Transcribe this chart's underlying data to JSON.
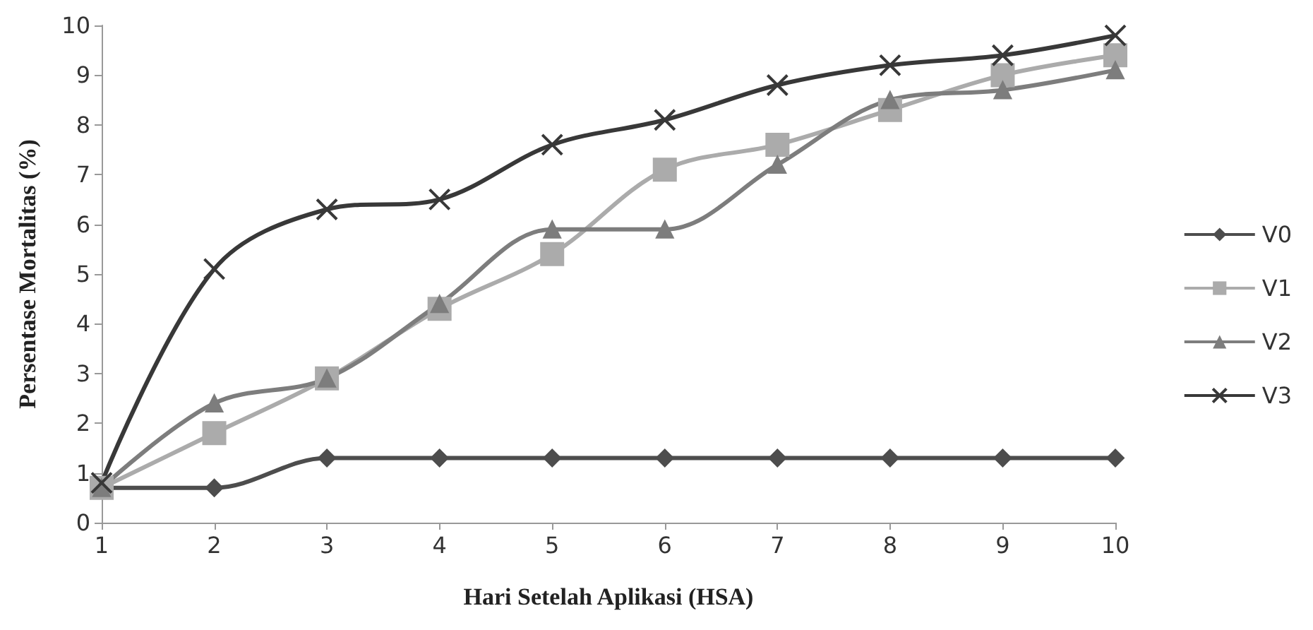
{
  "chart_data": {
    "type": "line",
    "xlabel": "Hari Setelah Aplikasi (HSA)",
    "ylabel": "Persentase Mortalitas (%)",
    "categories": [
      "1",
      "2",
      "3",
      "4",
      "5",
      "6",
      "7",
      "8",
      "9",
      "10"
    ],
    "series": [
      {
        "name": "V0",
        "color": "#4d4d4d",
        "marker": "diamond",
        "values": [
          0.7,
          0.7,
          1.3,
          1.3,
          1.3,
          1.3,
          1.3,
          1.3,
          1.3,
          1.3
        ]
      },
      {
        "name": "V1",
        "color": "#ababab",
        "marker": "square",
        "values": [
          0.7,
          1.8,
          2.9,
          4.3,
          5.4,
          7.1,
          7.6,
          8.3,
          9.0,
          9.4
        ]
      },
      {
        "name": "V2",
        "color": "#7d7d7d",
        "marker": "triangle",
        "values": [
          0.7,
          2.4,
          2.9,
          4.4,
          5.9,
          5.9,
          7.2,
          8.5,
          8.7,
          9.1
        ]
      },
      {
        "name": "V3",
        "color": "#383838",
        "marker": "cross",
        "values": [
          0.8,
          5.1,
          6.3,
          6.5,
          7.6,
          8.1,
          8.8,
          9.2,
          9.4,
          9.8
        ]
      }
    ],
    "ylim": [
      0,
      10
    ],
    "yticks": [
      0,
      1,
      2,
      3,
      4,
      5,
      6,
      7,
      8,
      9,
      10
    ],
    "grid": false,
    "legend": "right"
  }
}
